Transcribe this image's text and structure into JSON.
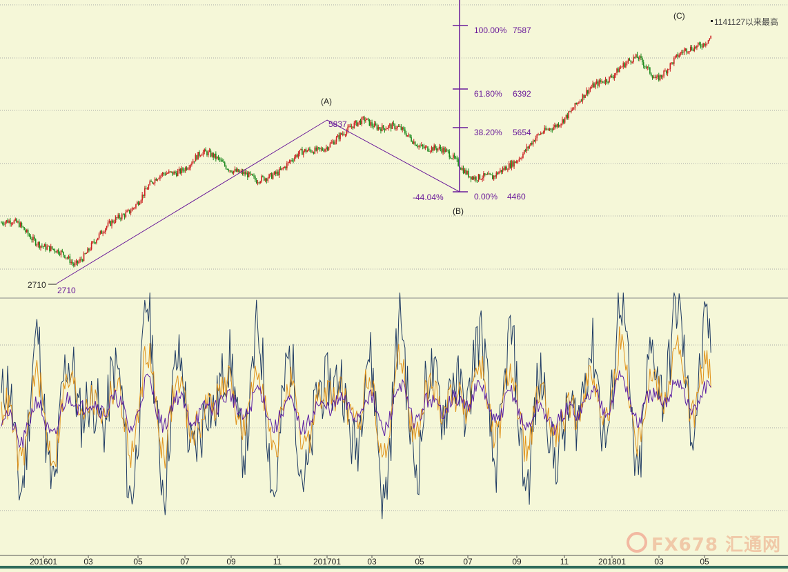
{
  "colors": {
    "background": "#f5f7d8",
    "grid": "#a8a8a8",
    "up_candle": "#cc2222",
    "down_candle": "#1e8a1e",
    "fib": "#6a1b9a",
    "osc_fast": "#1f3b63",
    "osc_mid": "#e0921a",
    "osc_slow": "#5b1ea3",
    "watermark": "#f0c9a8"
  },
  "x_axis_ticks": [
    "201601",
    "03",
    "05",
    "07",
    "09",
    "11",
    "201701",
    "03",
    "05",
    "07",
    "09",
    "11",
    "201801",
    "03",
    "05"
  ],
  "annotations": {
    "wave_a": "(A)",
    "wave_b": "(B)",
    "wave_c": "(C)",
    "low_left": "2710",
    "low_right": "2710",
    "peak_a": "5837",
    "retrace_pct": "-44.04%",
    "record_note": "1141127以来最高"
  },
  "fib_levels": [
    {
      "pct": "100.00%",
      "value": "7587"
    },
    {
      "pct": "61.80%",
      "value": "6392"
    },
    {
      "pct": "38.20%",
      "value": "5654"
    },
    {
      "pct": "0.00%",
      "value": "4460"
    }
  ],
  "watermark": {
    "text": "FX678 汇通网"
  },
  "chart_data": [
    {
      "type": "candlestick",
      "x_start": "2016-01",
      "x_end": "2018-05",
      "ylim": [
        2300,
        8000
      ],
      "grid": true,
      "close": [
        3600,
        3500,
        3250,
        2950,
        2710,
        3200,
        3500,
        3900,
        4300,
        4600,
        4800,
        5000,
        4950,
        4700,
        4400,
        4700,
        4900,
        5100,
        5300,
        5450,
        5837,
        5600,
        5500,
        5300,
        5100,
        4900,
        4600,
        4460,
        4900,
        5200,
        5500,
        5900,
        6200,
        6600,
        6900,
        7000,
        6700,
        7000,
        7250,
        7587
      ],
      "pivots": {
        "A": 5837,
        "B": 4460,
        "low": 2710,
        "C_high": 7587
      }
    },
    {
      "type": "line",
      "title": "",
      "grid": true,
      "series": [
        {
          "values": [
            55,
            30,
            70,
            25,
            80,
            35,
            75,
            20,
            85,
            30,
            70,
            25,
            80,
            40,
            75,
            30,
            65,
            20,
            85,
            35,
            70,
            25,
            80,
            30,
            75,
            45,
            85,
            40,
            70,
            30,
            60,
            25,
            80,
            45,
            90,
            35,
            70,
            85,
            60,
            75
          ]
        },
        {
          "values": [
            50,
            35,
            60,
            35,
            70,
            45,
            65,
            35,
            72,
            40,
            62,
            38,
            70,
            45,
            65,
            40,
            58,
            35,
            70,
            45,
            62,
            38,
            70,
            42,
            65,
            48,
            72,
            45,
            62,
            40,
            55,
            38,
            68,
            50,
            75,
            45,
            62,
            72,
            58,
            65
          ]
        },
        {
          "values": [
            48,
            40,
            52,
            42,
            60,
            50,
            58,
            45,
            62,
            48,
            56,
            46,
            60,
            50,
            58,
            48,
            52,
            45,
            58,
            50,
            56,
            46,
            60,
            48,
            57,
            52,
            62,
            50,
            56,
            47,
            50,
            46,
            58,
            54,
            64,
            50,
            56,
            62,
            55,
            58
          ]
        }
      ]
    }
  ]
}
